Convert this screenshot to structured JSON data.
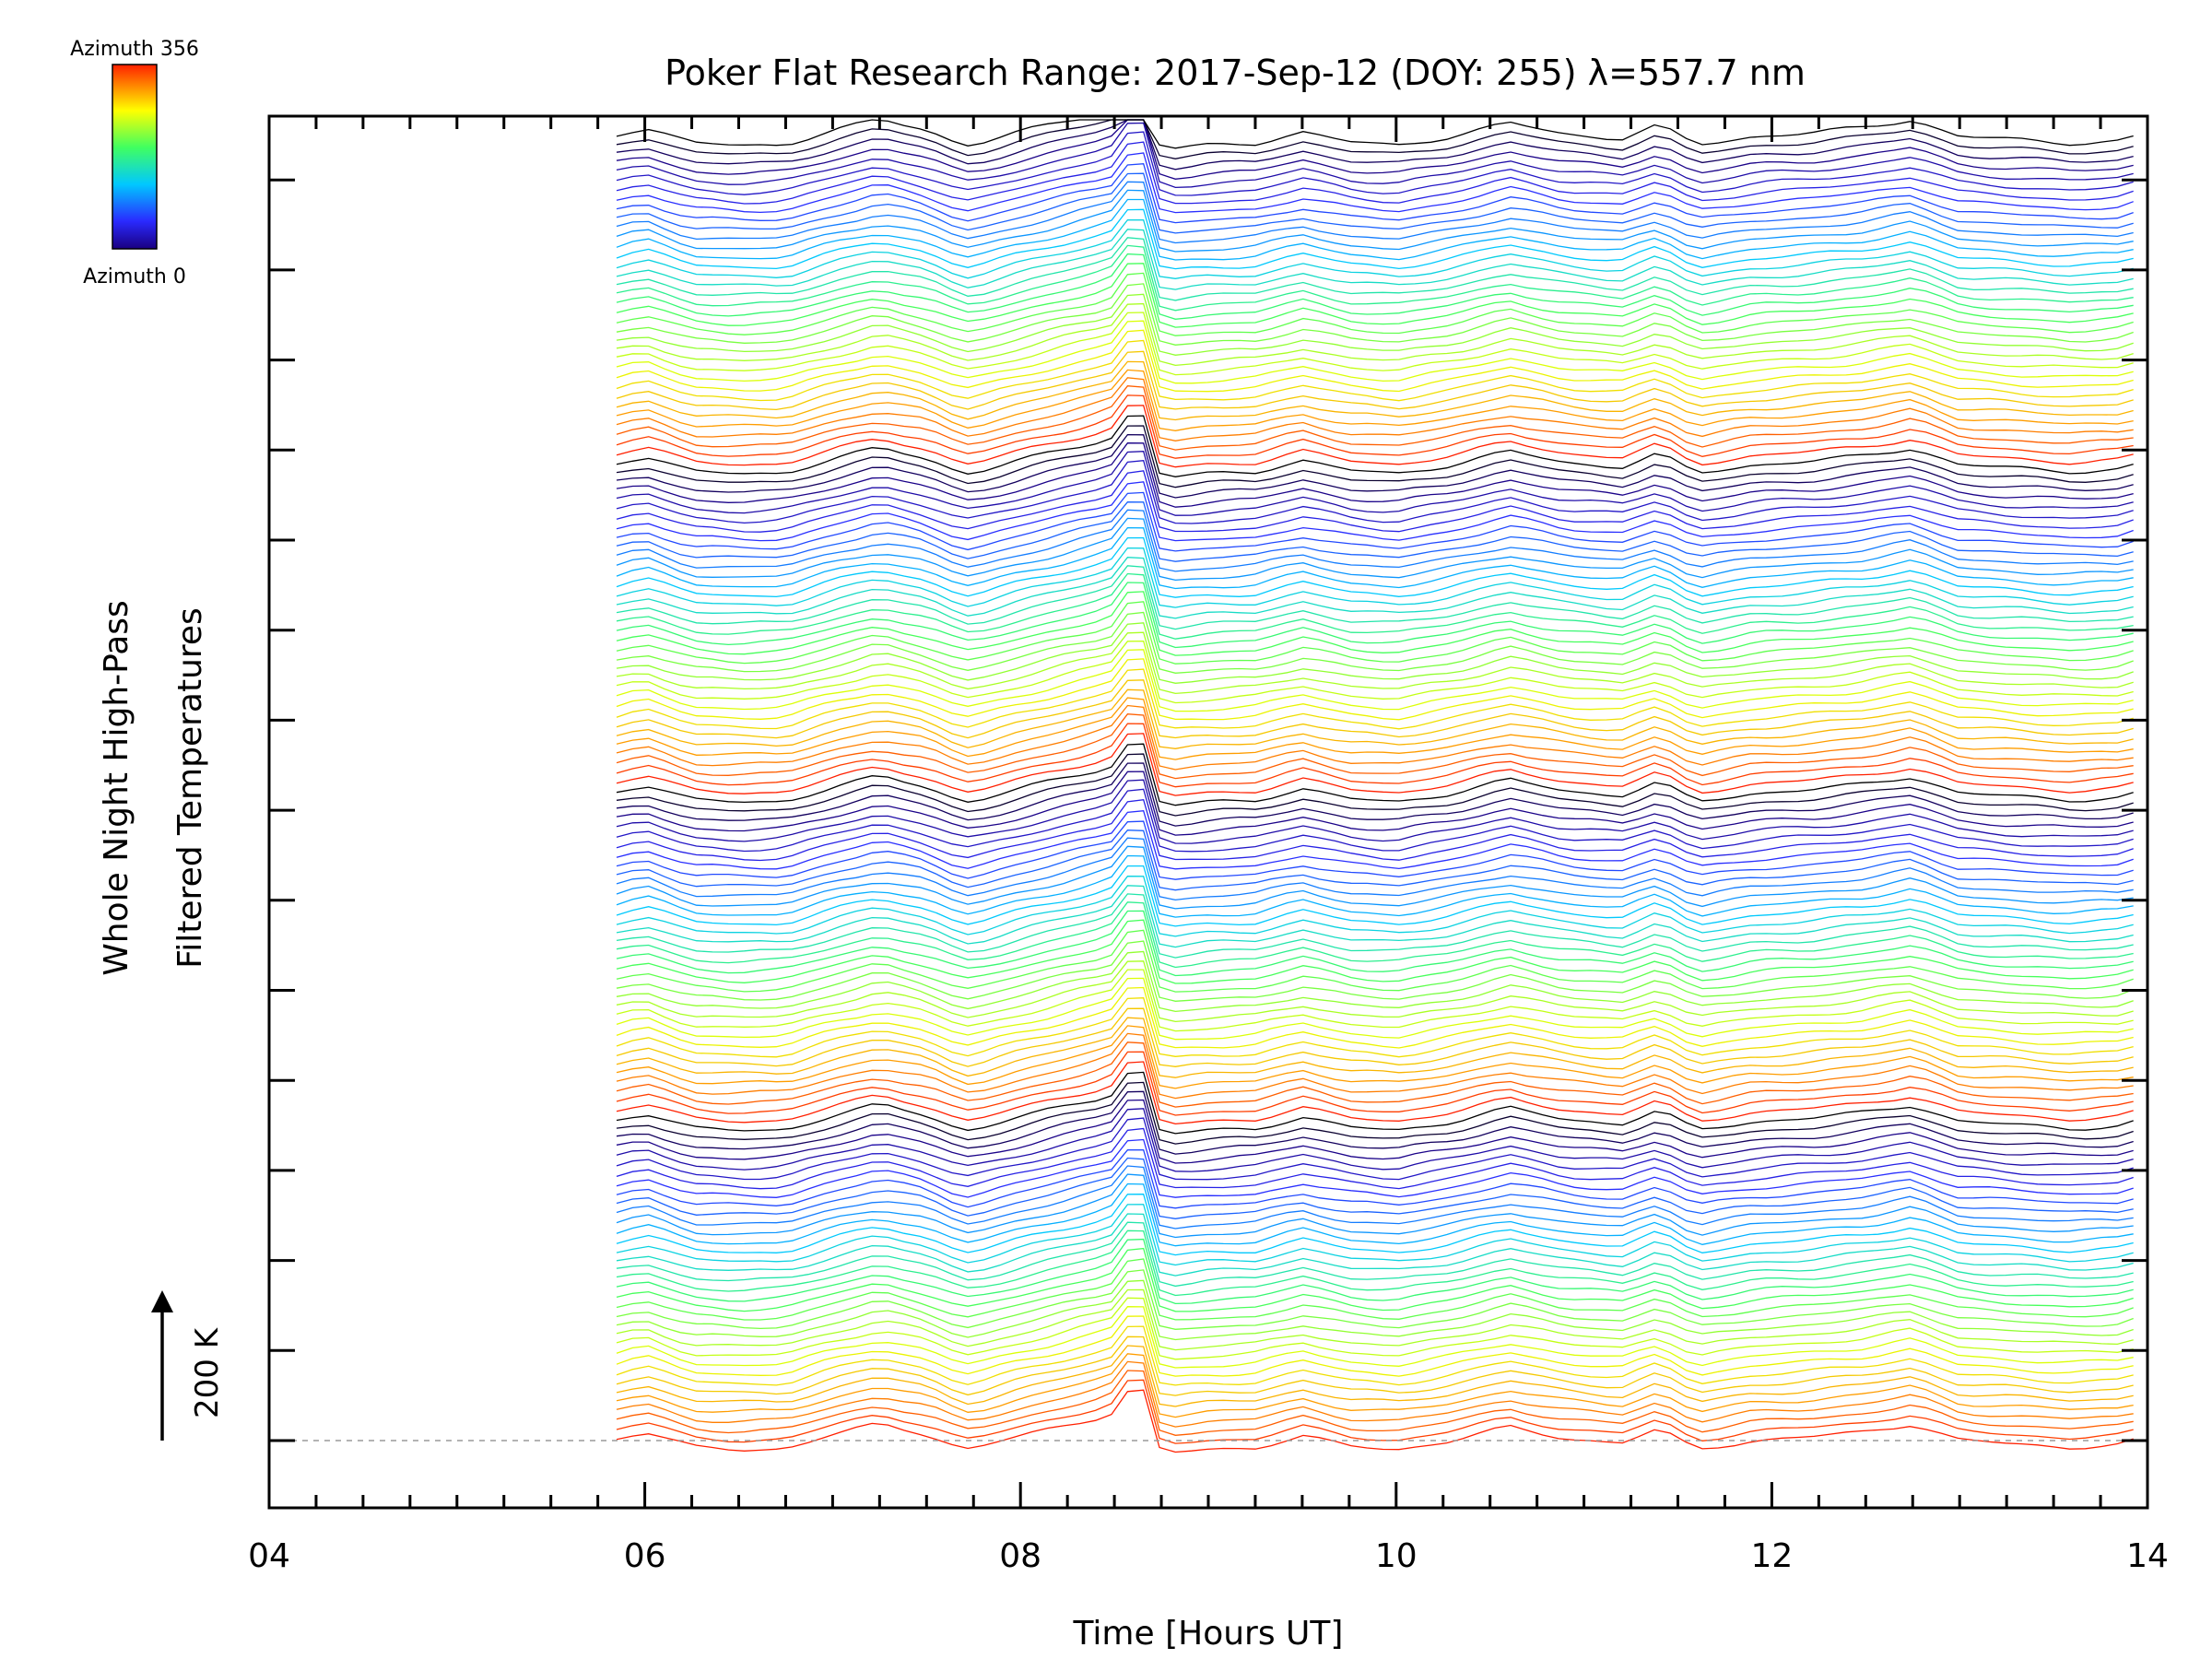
{
  "chart_data": {
    "type": "line",
    "title": "Poker Flat Research Range: 2017-Sep-12 (DOY: 255) λ=557.7 nm",
    "xlabel": "Time [Hours UT]",
    "ylabel_line1": "Whole Night High-Pass",
    "ylabel_line2": "Filtered Temperatures",
    "xlim": [
      4,
      14
    ],
    "x_tick_labels": [
      "04",
      "06",
      "08",
      "10",
      "12",
      "14"
    ],
    "x_major_ticks": [
      4,
      6,
      8,
      10,
      12,
      14
    ],
    "x_minor_step": 0.25,
    "series_count": 140,
    "series_hue_cycle": 35,
    "series_offset_K": 100,
    "data_start_hour": 5.85,
    "data_end_hour": 14,
    "scale_bar_label": "200 K",
    "colorbar": {
      "top_label": "Azimuth 356",
      "bottom_label": "Azimuth 0",
      "azimuth_min": 0,
      "azimuth_max": 356,
      "colormap": "rainbow (purple-blue-cyan-green-yellow-red)"
    },
    "common_profile": {
      "hours": [
        5.85,
        6.0,
        6.25,
        6.5,
        6.75,
        7.0,
        7.25,
        7.5,
        7.7,
        7.8,
        8.0,
        8.2,
        8.4,
        8.55,
        8.62,
        8.75,
        9.0,
        9.25,
        9.5,
        9.75,
        10.0,
        10.3,
        10.6,
        10.9,
        11.2,
        11.4,
        11.6,
        11.9,
        12.2,
        12.5,
        12.75,
        13.0,
        13.3,
        13.6,
        13.85,
        14.0
      ],
      "relative_K": [
        2,
        8,
        -6,
        -8,
        -7,
        5,
        15,
        6,
        -8,
        -5,
        4,
        12,
        20,
        28,
        48,
        -12,
        -8,
        -6,
        4,
        -5,
        -8,
        0,
        12,
        2,
        -2,
        10,
        -8,
        0,
        3,
        8,
        15,
        0,
        -3,
        -6,
        -4,
        3
      ]
    }
  }
}
